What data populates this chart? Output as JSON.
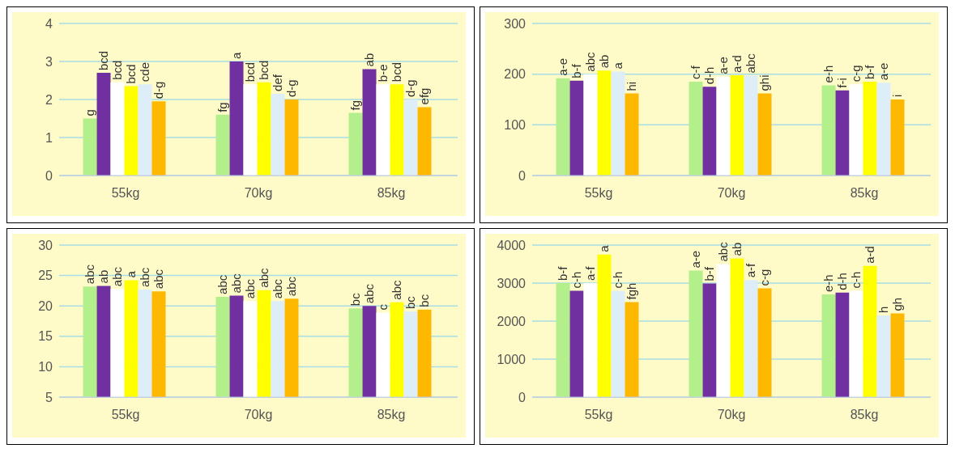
{
  "chart_data": [
    {
      "type": "bar",
      "categories": [
        "55kg",
        "70kg",
        "85kg"
      ],
      "ylim": [
        0,
        4
      ],
      "yticks": [
        0,
        1,
        2,
        3,
        4
      ],
      "grid": "y",
      "legend": false,
      "series": [
        {
          "color": "#b3f08c",
          "values": [
            1.5,
            1.6,
            1.65
          ],
          "value_labels": [
            "g",
            "fg",
            "fg"
          ]
        },
        {
          "color": "#7030a0",
          "values": [
            2.7,
            3.0,
            2.8
          ],
          "value_labels": [
            "bcd",
            "a",
            "ab"
          ]
        },
        {
          "color": "#ffffff",
          "values": [
            2.45,
            2.4,
            2.4
          ],
          "value_labels": [
            "bcd",
            "bcd",
            "b-e"
          ]
        },
        {
          "color": "#ffff00",
          "values": [
            2.35,
            2.45,
            2.4
          ],
          "value_labels": [
            "bcd",
            "bcd",
            "bcd"
          ]
        },
        {
          "color": "#ddeef8",
          "values": [
            2.4,
            2.15,
            2.0
          ],
          "value_labels": [
            "cde",
            "def",
            "d-g"
          ]
        },
        {
          "color": "#ffb800",
          "values": [
            1.95,
            2.0,
            1.8
          ],
          "value_labels": [
            "d-g",
            "d-g",
            "efg"
          ]
        }
      ]
    },
    {
      "type": "bar",
      "categories": [
        "55kg",
        "70kg",
        "85kg"
      ],
      "ylim": [
        0,
        300
      ],
      "yticks": [
        0,
        100,
        200,
        300
      ],
      "grid": "y",
      "legend": false,
      "series": [
        {
          "color": "#b3f08c",
          "values": [
            192,
            185,
            178
          ],
          "value_labels": [
            "a-e",
            "c-f",
            "e-h"
          ]
        },
        {
          "color": "#7030a0",
          "values": [
            187,
            175,
            168
          ],
          "value_labels": [
            "b-f",
            "d-h",
            "f-i"
          ]
        },
        {
          "color": "#ffffff",
          "values": [
            200,
            195,
            180
          ],
          "value_labels": [
            "abc",
            "a-e",
            "c-g"
          ]
        },
        {
          "color": "#ffff00",
          "values": [
            207,
            198,
            185
          ],
          "value_labels": [
            "ab",
            "a-d",
            "b-f"
          ]
        },
        {
          "color": "#ddeef8",
          "values": [
            205,
            197,
            183
          ],
          "value_labels": [
            "a",
            "abc",
            "a-e"
          ]
        },
        {
          "color": "#ffb800",
          "values": [
            162,
            162,
            150
          ],
          "value_labels": [
            "hi",
            "ghi",
            "i"
          ]
        }
      ]
    },
    {
      "type": "bar",
      "categories": [
        "55kg",
        "70kg",
        "85kg"
      ],
      "ylim": [
        5,
        30
      ],
      "yticks": [
        5,
        10,
        15,
        20,
        25,
        30
      ],
      "grid": "y",
      "legend": false,
      "series": [
        {
          "color": "#b3f08c",
          "values": [
            23.2,
            21.5,
            19.6
          ],
          "value_labels": [
            "abc",
            "abc",
            "bc"
          ]
        },
        {
          "color": "#7030a0",
          "values": [
            23.3,
            21.7,
            20.0
          ],
          "value_labels": [
            "ab",
            "abc",
            "abc"
          ]
        },
        {
          "color": "#ffffff",
          "values": [
            22.8,
            20.8,
            18.9
          ],
          "value_labels": [
            "abc",
            "abc",
            "c"
          ]
        },
        {
          "color": "#ffff00",
          "values": [
            24.2,
            22.6,
            20.6
          ],
          "value_labels": [
            "a",
            "abc",
            "abc"
          ]
        },
        {
          "color": "#ddeef8",
          "values": [
            22.7,
            20.8,
            19.1
          ],
          "value_labels": [
            "abc",
            "abc",
            "bc"
          ]
        },
        {
          "color": "#ffb800",
          "values": [
            22.4,
            21.2,
            19.4
          ],
          "value_labels": [
            "abc",
            "abc",
            "bc"
          ]
        }
      ]
    },
    {
      "type": "bar",
      "categories": [
        "55kg",
        "70kg",
        "85kg"
      ],
      "ylim": [
        0,
        4000
      ],
      "yticks": [
        0,
        1000,
        2000,
        3000,
        4000
      ],
      "grid": "y",
      "legend": false,
      "series": [
        {
          "color": "#b3f08c",
          "values": [
            3000,
            3330,
            2700
          ],
          "value_labels": [
            "b-f",
            "a-e",
            "e-h"
          ]
        },
        {
          "color": "#7030a0",
          "values": [
            2800,
            2990,
            2750
          ],
          "value_labels": [
            "c-h",
            "b-f",
            "d-h"
          ]
        },
        {
          "color": "#ffffff",
          "values": [
            3000,
            3500,
            2800
          ],
          "value_labels": [
            "a-f",
            "abc",
            "c-h"
          ]
        },
        {
          "color": "#ffff00",
          "values": [
            3750,
            3650,
            3450
          ],
          "value_labels": [
            "a",
            "ab",
            "a-d"
          ]
        },
        {
          "color": "#ddeef8",
          "values": [
            2800,
            3080,
            2150
          ],
          "value_labels": [
            "c-h",
            "a-f",
            "h"
          ]
        },
        {
          "color": "#ffb800",
          "values": [
            2500,
            2860,
            2200
          ],
          "value_labels": [
            "fgh",
            "c-g",
            "gh"
          ]
        }
      ]
    }
  ]
}
